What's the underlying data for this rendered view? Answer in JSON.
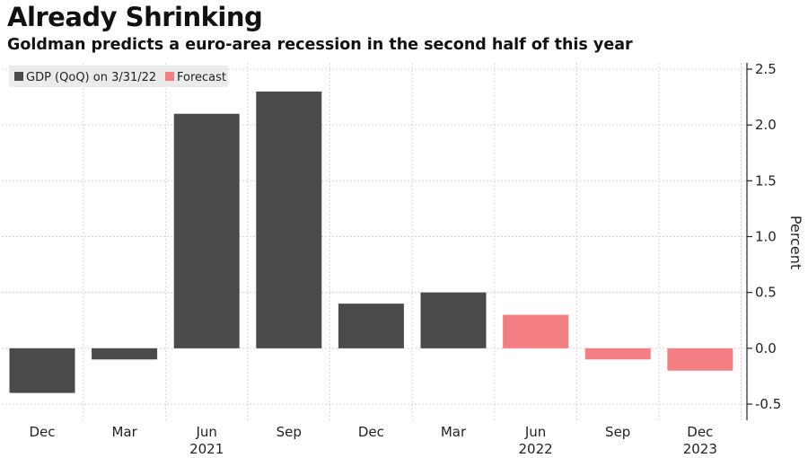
{
  "chart_data": {
    "type": "bar",
    "title": "Already Shrinking",
    "subtitle": "Goldman predicts a euro-area recession in the second half of this year",
    "ylabel": "Percent",
    "ylim": [
      -0.5,
      2.5
    ],
    "yticks": [
      "2.5",
      "2.0",
      "1.5",
      "1.0",
      "0.5",
      "0.0",
      "-0.5"
    ],
    "ytick_values": [
      2.5,
      2.0,
      1.5,
      1.0,
      0.5,
      0.0,
      -0.5
    ],
    "categories": [
      "Dec",
      "Mar",
      "Jun",
      "Sep",
      "Dec",
      "Mar",
      "Jun",
      "Sep",
      "Dec"
    ],
    "year_labels": [
      {
        "under": 2,
        "label": "2021"
      },
      {
        "under": 6,
        "label": "2022"
      },
      {
        "under": 8,
        "label": "2023"
      }
    ],
    "series": [
      {
        "name": "GDP (QoQ) on 3/31/22",
        "color": "#4a4a4a",
        "values": [
          -0.4,
          -0.1,
          2.1,
          2.3,
          0.4,
          0.5,
          null,
          null,
          null
        ]
      },
      {
        "name": "Forecast",
        "color": "#f47f83",
        "values": [
          null,
          null,
          null,
          null,
          null,
          null,
          0.3,
          -0.1,
          -0.2
        ]
      }
    ],
    "grid": true,
    "legend_position": "top-left"
  }
}
